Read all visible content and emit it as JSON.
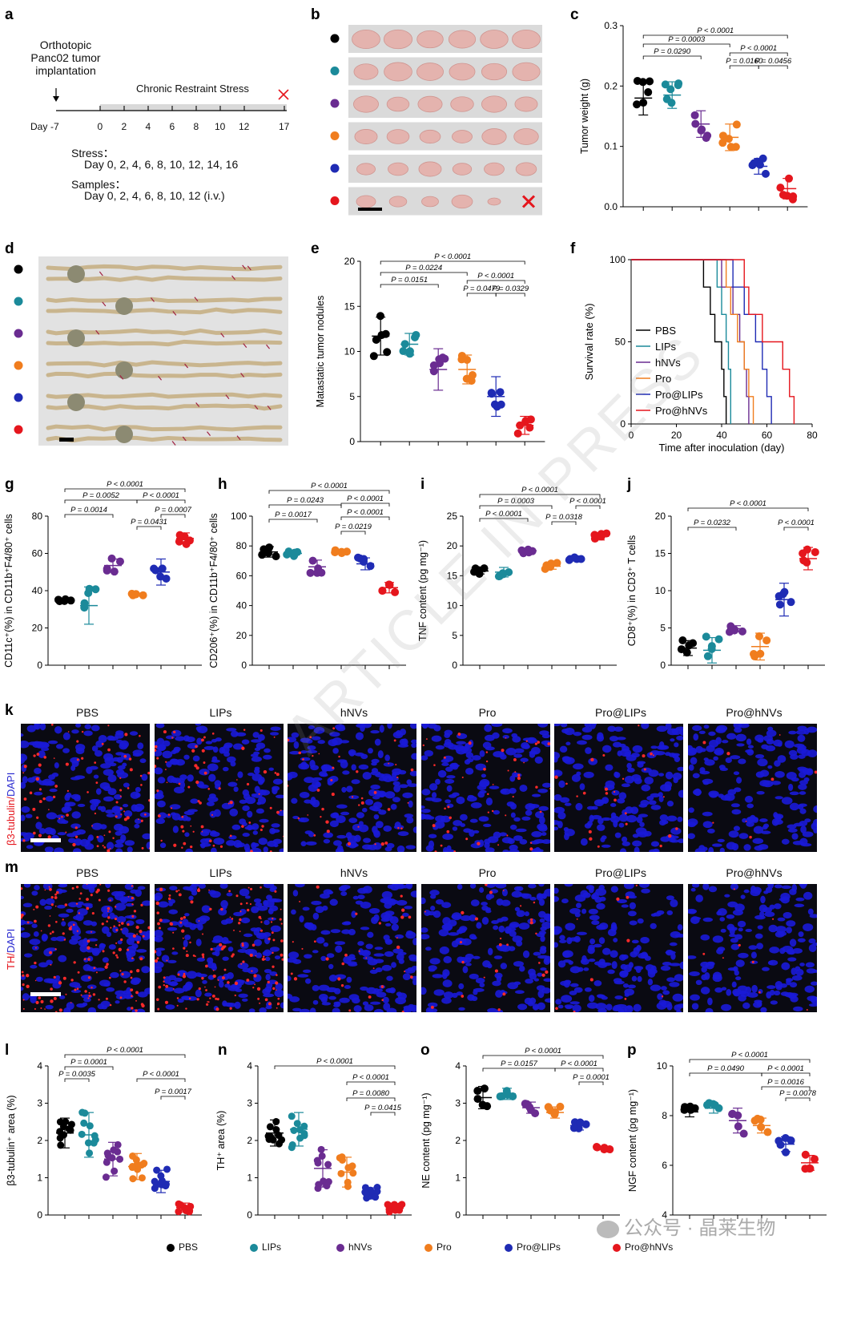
{
  "colors": {
    "PBS": "#000000",
    "LIPs": "#1b8a9a",
    "hNVs": "#6a2c91",
    "Pro": "#f07d1e",
    "Pro@LIPs": "#1f2bb4",
    "Pro@hNVs": "#e5161d"
  },
  "groups": [
    "PBS",
    "LIPs",
    "hNVs",
    "Pro",
    "Pro@LIPs",
    "Pro@hNVs"
  ],
  "panel_letters": {
    "a": "a",
    "b": "b",
    "c": "c",
    "d": "d",
    "e": "e",
    "f": "f",
    "g": "g",
    "h": "h",
    "i": "i",
    "j": "j",
    "k": "k",
    "m": "m",
    "l": "l",
    "n": "n",
    "o": "o",
    "p": "p"
  },
  "panel_a": {
    "implant_label": [
      "Orthotopic",
      "Panc02 tumor",
      "implantation"
    ],
    "stress_bar_label": "Chronic Restraint Stress",
    "day_label": "Day",
    "days": [
      "-7",
      "0",
      "2",
      "4",
      "6",
      "8",
      "10",
      "12",
      "17"
    ],
    "stress_title": "Stress：",
    "stress_days": "Day 0, 2, 4, 6, 8, 10, 12, 14, 16",
    "samples_title": "Samples：",
    "samples_days": "Day 0, 2, 4, 6, 8, 10, 12 (i.v.)"
  },
  "panel_c": {
    "ylabel": "Tumor weight (g)",
    "ticks": [
      "0.0",
      "0.1",
      "0.2",
      "0.3"
    ],
    "pvals": [
      "P < 0.0001",
      "P = 0.0003",
      "P = 0.0290",
      "P < 0.0001",
      "P = 0.0160",
      "P = 0.0456"
    ],
    "chart_data": {
      "type": "scatter",
      "ylim": [
        0,
        0.3
      ],
      "means": [
        0.18,
        0.185,
        0.137,
        0.115,
        0.067,
        0.03
      ]
    }
  },
  "panel_e": {
    "ylabel": "Matastatic tumor nodules",
    "ticks": [
      "0",
      "5",
      "10",
      "15",
      "20"
    ],
    "pvals": [
      "P < 0.0001",
      "P = 0.0224",
      "P = 0.0151",
      "P < 0.0001",
      "P = 0.0479",
      "P = 0.0329"
    ],
    "chart_data": {
      "type": "scatter",
      "ylim": [
        0,
        20
      ],
      "means": [
        11.7,
        10.8,
        8.0,
        8.0,
        5.0,
        1.8
      ]
    }
  },
  "panel_f": {
    "ylabel": "Survival rate (%)",
    "xlabel": "Time after inoculation (day)",
    "yticks": [
      "0",
      "50",
      "100"
    ],
    "xticks": [
      "0",
      "20",
      "40",
      "60",
      "80"
    ],
    "legend": [
      "PBS",
      "LIPs",
      "hNVs",
      "Pro",
      "Pro@LIPs",
      "Pro@hNVs"
    ],
    "chart_data": {
      "type": "line",
      "xlim": [
        0,
        80
      ],
      "ylim": [
        0,
        100
      ]
    }
  },
  "panel_g": {
    "ylabel": "CD11c⁺(%) in CD11b⁺F4/80⁺ cells",
    "ticks": [
      "0",
      "20",
      "40",
      "60",
      "80"
    ],
    "pvals": [
      "P < 0.0001",
      "P = 0.0052",
      "P = 0.0014",
      "P = 0.0007",
      "P < 0.0001",
      "P = 0.0431"
    ],
    "chart_data": {
      "type": "scatter",
      "ylim": [
        0,
        80
      ],
      "means": [
        35,
        32,
        53.5,
        38,
        50,
        68
      ]
    }
  },
  "panel_h": {
    "ylabel": "CD206⁺(%) in CD11b⁺F4/80⁺ cells",
    "ticks": [
      "0",
      "20",
      "40",
      "60",
      "80",
      "100"
    ],
    "pvals": [
      "P < 0.0001",
      "P = 0.0243",
      "P < 0.0001",
      "P = 0.0017",
      "P < 0.0001",
      "P = 0.0219"
    ],
    "chart_data": {
      "type": "scatter",
      "ylim": [
        0,
        100
      ],
      "means": [
        76,
        75,
        66,
        76,
        68,
        52
      ]
    }
  },
  "panel_i": {
    "ylabel": "TNF content (pg mg⁻¹)",
    "ticks": [
      "0",
      "5",
      "10",
      "15",
      "20",
      "25"
    ],
    "pvals": [
      "P < 0.0001",
      "P = 0.0003",
      "P < 0.0001",
      "P < 0.0001",
      "P = 0.0318"
    ],
    "chart_data": {
      "type": "scatter",
      "ylim": [
        0,
        25
      ],
      "means": [
        15.8,
        15.6,
        19.2,
        16.6,
        17.9,
        21.6
      ]
    }
  },
  "panel_j": {
    "ylabel": "CD8⁺(%) in CD3⁺ T cells",
    "ticks": [
      "0",
      "5",
      "10",
      "15",
      "20"
    ],
    "pvals": [
      "P < 0.0001",
      "P = 0.0232",
      "P < 0.0001"
    ],
    "chart_data": {
      "type": "scatter",
      "ylim": [
        0,
        20
      ],
      "means": [
        2.3,
        2.0,
        4.9,
        2.5,
        8.8,
        14.3
      ]
    }
  },
  "panel_l": {
    "ylabel": "β3-tubulin⁺ area (%)",
    "ticks": [
      "0",
      "1",
      "2",
      "3",
      "4"
    ],
    "pvals": [
      "P < 0.0001",
      "P = 0.0001",
      "P = 0.0035",
      "P < 0.0001",
      "P = 0.0017"
    ],
    "chart_data": {
      "type": "scatter",
      "ylim": [
        0,
        4
      ],
      "means": [
        2.2,
        2.15,
        1.5,
        1.3,
        0.9,
        0.2
      ]
    }
  },
  "panel_n": {
    "ylabel": "TH⁺ area (%)",
    "ticks": [
      "0",
      "1",
      "2",
      "3",
      "4"
    ],
    "pvals": [
      "P < 0.0001",
      "P < 0.0001",
      "P = 0.0080",
      "P = 0.0415"
    ],
    "chart_data": {
      "type": "scatter",
      "ylim": [
        0,
        4
      ],
      "means": [
        2.2,
        2.3,
        1.25,
        1.15,
        0.58,
        0.18
      ]
    }
  },
  "panel_o": {
    "ylabel": "NE content (pg mg⁻¹)",
    "ticks": [
      "0",
      "1",
      "2",
      "3",
      "4"
    ],
    "pvals": [
      "P < 0.0001",
      "P = 0.0157",
      "P < 0.0001",
      "P = 0.0001"
    ],
    "chart_data": {
      "type": "scatter",
      "ylim": [
        0,
        4
      ],
      "means": [
        3.15,
        3.25,
        2.88,
        2.75,
        2.4,
        1.8
      ]
    }
  },
  "panel_p": {
    "ylabel": "NGF content (pg mg⁻¹)",
    "ticks": [
      "4",
      "6",
      "8",
      "10"
    ],
    "pvals": [
      "P < 0.0001",
      "P = 0.0490",
      "P < 0.0001",
      "P = 0.0016",
      "P = 0.0078"
    ],
    "chart_data": {
      "type": "scatter",
      "ylim": [
        4,
        10
      ],
      "means": [
        8.15,
        8.3,
        7.8,
        7.6,
        6.85,
        6.1
      ]
    }
  },
  "panel_k": {
    "channel_label_red": "β3-tubulin/",
    "channel_label_blue": "DAPI",
    "titles": [
      "PBS",
      "LIPs",
      "hNVs",
      "Pro",
      "Pro@LIPs",
      "Pro@hNVs"
    ]
  },
  "panel_m": {
    "channel_label_red": "TH/",
    "channel_label_blue": "DAPI",
    "titles": [
      "PBS",
      "LIPs",
      "hNVs",
      "Pro",
      "Pro@LIPs",
      "Pro@hNVs"
    ]
  },
  "watermark": "ARTICLE IN PRESS",
  "brand": "公众号 · 晶莱生物"
}
